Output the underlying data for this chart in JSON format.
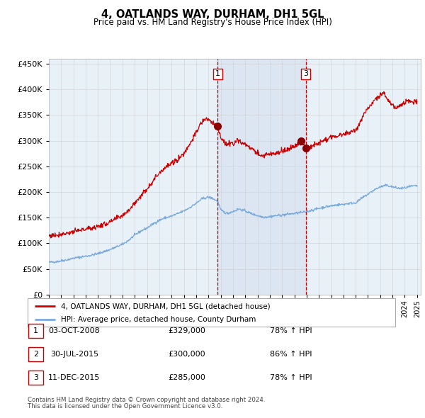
{
  "title": "4, OATLANDS WAY, DURHAM, DH1 5GL",
  "subtitle": "Price paid vs. HM Land Registry's House Price Index (HPI)",
  "legend_line1": "4, OATLANDS WAY, DURHAM, DH1 5GL (detached house)",
  "legend_line2": "HPI: Average price, detached house, County Durham",
  "transactions": [
    {
      "label": "1",
      "date": "03-OCT-2008",
      "price": 329000,
      "hpi_pct": "78%",
      "arrow": "↑"
    },
    {
      "label": "2",
      "date": "30-JUL-2015",
      "price": 300000,
      "hpi_pct": "86%",
      "arrow": "↑"
    },
    {
      "label": "3",
      "date": "11-DEC-2015",
      "price": 285000,
      "hpi_pct": "78%",
      "arrow": "↑"
    }
  ],
  "footer_line1": "Contains HM Land Registry data © Crown copyright and database right 2024.",
  "footer_line2": "This data is licensed under the Open Government Licence v3.0.",
  "red_line_color": "#cc0000",
  "blue_line_color": "#7aaadd",
  "plot_bg_color": "#ffffff",
  "chart_bg_color": "#e8f0f8",
  "grid_color": "#cccccc",
  "vline1_x": 2008.75,
  "vline2_x": 2015.93,
  "vline_color": "#cc0000",
  "marker_color": "#880000",
  "ylim": [
    0,
    460000
  ],
  "yticks": [
    0,
    50000,
    100000,
    150000,
    200000,
    250000,
    300000,
    350000,
    400000,
    450000
  ],
  "xlim_start": 1995.0,
  "xlim_end": 2025.3
}
